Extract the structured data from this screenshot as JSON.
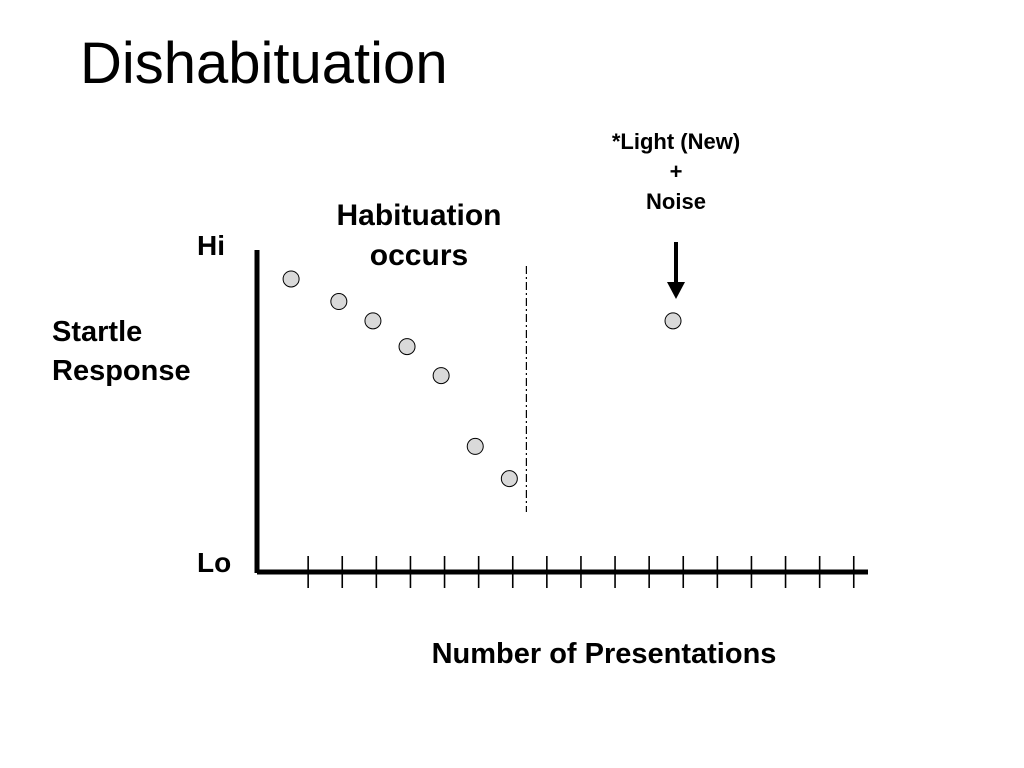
{
  "slide": {
    "title": "Dishabituation"
  },
  "chart_data": {
    "type": "scatter",
    "title": "Dishabituation",
    "xlabel": "Number of Presentations",
    "ylabel": [
      "Startle",
      "Response"
    ],
    "y_tick_labels": {
      "hi": "Hi",
      "lo": "Lo"
    },
    "x_tick_count": 17,
    "xlim": [
      0,
      17.7
    ],
    "ylim": [
      0,
      1
    ],
    "points": [
      {
        "x": 1,
        "y": 0.91
      },
      {
        "x": 2.4,
        "y": 0.84
      },
      {
        "x": 3.4,
        "y": 0.78
      },
      {
        "x": 4.4,
        "y": 0.7
      },
      {
        "x": 5.4,
        "y": 0.61
      },
      {
        "x": 6.4,
        "y": 0.39
      },
      {
        "x": 7.4,
        "y": 0.29
      },
      {
        "x": 12.2,
        "y": 0.78
      }
    ],
    "divider_x": 7.9,
    "annotations": {
      "habituation": [
        "Habituation",
        "occurs"
      ],
      "dishabituation": [
        "*Light (New)",
        "+",
        "Noise"
      ]
    },
    "colors": {
      "point_fill": "#d9d9d9",
      "axis": "#000000"
    },
    "grid": false,
    "legend": "none"
  }
}
